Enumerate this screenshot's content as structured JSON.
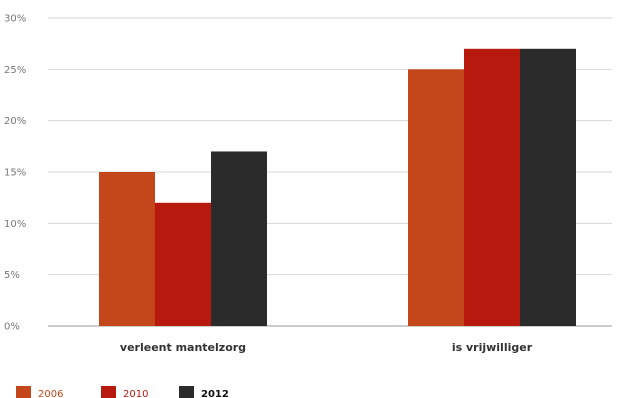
{
  "chart_data": {
    "type": "bar",
    "categories": [
      "verleent mantelzorg",
      "is vrijwilliger"
    ],
    "series": [
      {
        "name": "2006",
        "values": [
          15,
          25
        ],
        "color": "#c4461b"
      },
      {
        "name": "2010",
        "values": [
          12,
          27
        ],
        "color": "#b8190f"
      },
      {
        "name": "2012",
        "values": [
          17,
          27
        ],
        "color": "#2b2b2b"
      }
    ],
    "y_ticks": [
      "0%",
      "5%",
      "10%",
      "15%",
      "20%",
      "25%",
      "30%"
    ],
    "ylim": [
      0,
      30
    ],
    "grid": true,
    "legend_position": "bottom-left",
    "title": "",
    "xlabel": "",
    "ylabel": ""
  }
}
